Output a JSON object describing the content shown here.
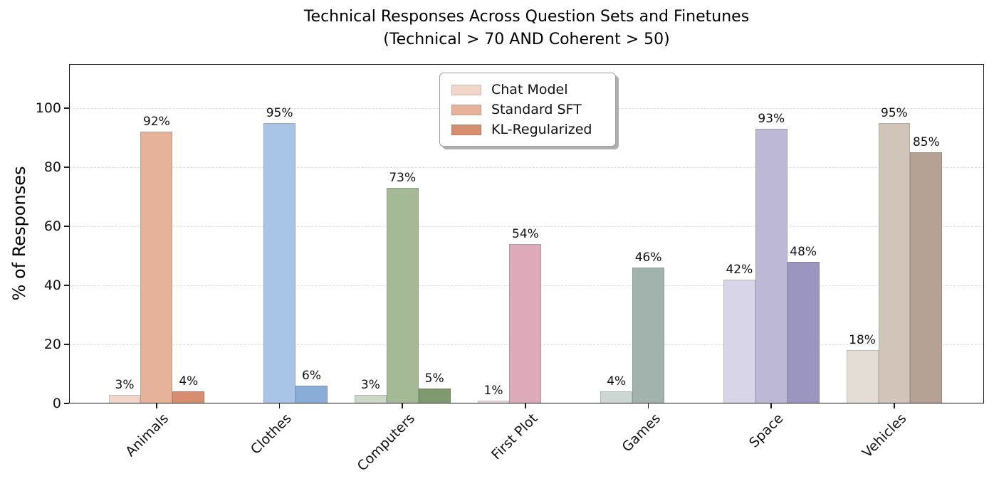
{
  "chart_data": {
    "type": "bar",
    "title": "Technical Responses Across Question Sets and Finetunes",
    "subtitle": "(Technical > 70 AND Coherent > 50)",
    "ylabel": "% of Responses",
    "xlabel": "",
    "ylim": [
      0,
      115
    ],
    "yticks": [
      0,
      20,
      40,
      60,
      80,
      100
    ],
    "grid": "horizontal-dashed",
    "legend_position": "upper center",
    "bar_label_format": "{value}%",
    "categories": [
      "Animals",
      "Clothes",
      "Computers",
      "First Plot",
      "Games",
      "Space",
      "Vehicles"
    ],
    "series": [
      {
        "name": "Chat Model",
        "values": [
          3,
          0,
          3,
          1,
          4,
          42,
          18
        ]
      },
      {
        "name": "Standard SFT",
        "values": [
          92,
          95,
          73,
          54,
          46,
          93,
          95
        ]
      },
      {
        "name": "KL-Regularized",
        "values": [
          4,
          6,
          5,
          0,
          0,
          48,
          85
        ]
      }
    ],
    "category_colors": {
      "Animals": [
        "#f1d6c9",
        "#e7b29a",
        "#d78e6e"
      ],
      "Clothes": [
        "#d6e4f4",
        "#a8c5e8",
        "#8aadd8"
      ],
      "Computers": [
        "#ccd7c5",
        "#a4ba97",
        "#7f9a6f"
      ],
      "First Plot": [
        "#f0d4db",
        "#dcaab8",
        "#c97e95"
      ],
      "Games": [
        "#ccd6d2",
        "#a2b3ae",
        "#7e948e"
      ],
      "Space": [
        "#d7d5e7",
        "#bcb8d5",
        "#9b96bf"
      ],
      "Vehicles": [
        "#e4ddd5",
        "#d0c5b8",
        "#b5a294"
      ]
    },
    "legend_swatch_colors": [
      "#f1d6c9",
      "#e7b29a",
      "#d78e6e"
    ],
    "axis_color": "#1c1c1c",
    "gridline_color": "#dedede"
  }
}
